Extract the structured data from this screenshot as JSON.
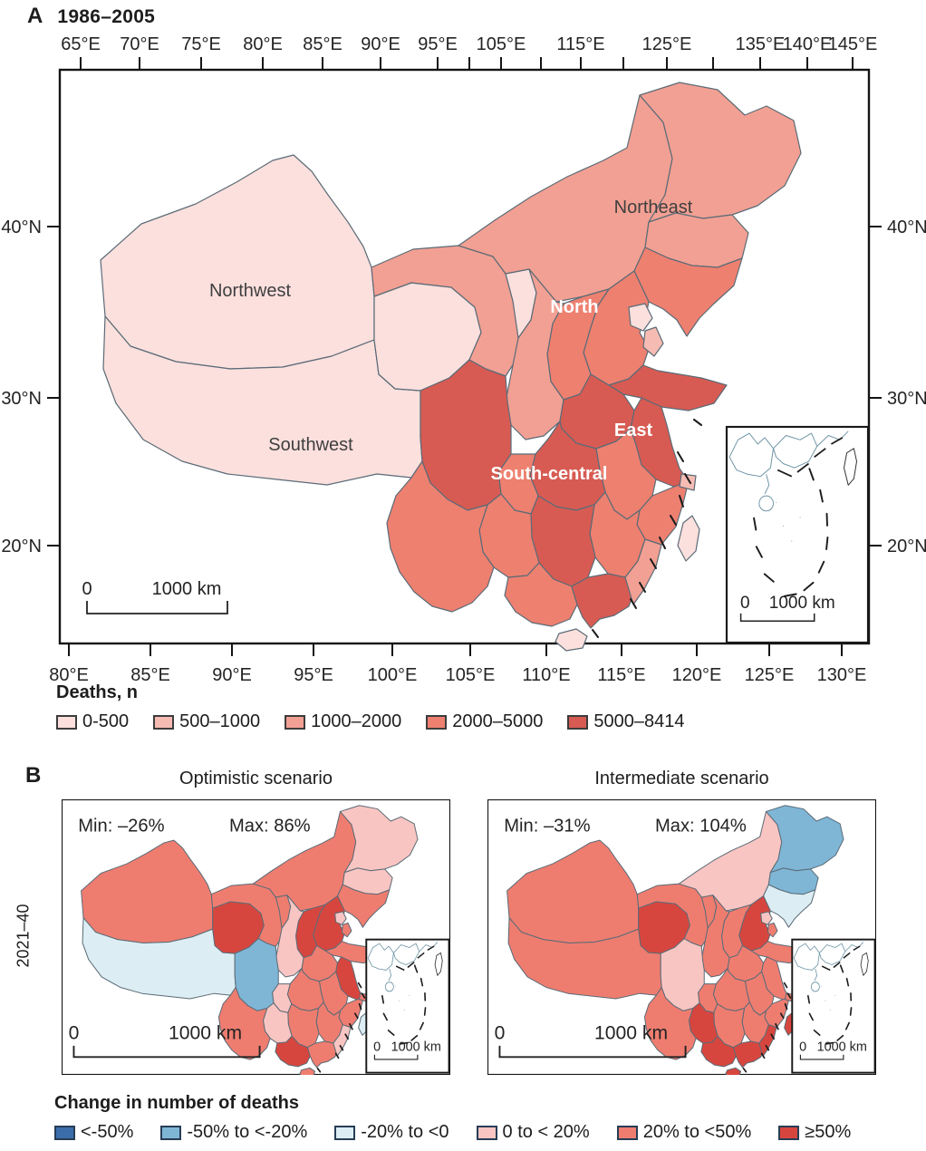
{
  "panel_a": {
    "label": "A",
    "title": "1986–2005",
    "axes": {
      "top_labels": [
        "65°E",
        "70°E",
        "75°E",
        "80°E",
        "85°E",
        "90°E",
        "95°E",
        "",
        "105°E",
        "",
        "115°E",
        "",
        "125°E",
        "",
        "135°E",
        "140°E",
        "145°E"
      ],
      "bottom_labels": [
        "80°E",
        "85°E",
        "90°E",
        "95°E",
        "100°E",
        "105°E",
        "110°E",
        "115°E",
        "120°E",
        "125°E",
        "130°E"
      ],
      "left_labels": [
        "40°N",
        "30°N",
        "20°N"
      ],
      "right_labels": [
        "40°N",
        "30°N",
        "20°N"
      ]
    },
    "region_labels": [
      {
        "name": "Northwest",
        "style": "dark"
      },
      {
        "name": "Southwest",
        "style": "dark"
      },
      {
        "name": "Northeast",
        "style": "dark"
      },
      {
        "name": "North",
        "style": "light"
      },
      {
        "name": "East",
        "style": "light"
      },
      {
        "name": "South-central",
        "style": "light"
      }
    ],
    "scalebar": {
      "zero": "0",
      "km": "1000 km"
    },
    "inset_scalebar": {
      "zero": "0",
      "km": "1000 km"
    },
    "legend": {
      "title": "Deaths, n",
      "items": [
        {
          "label": "0-500",
          "color": "#fbe0dd"
        },
        {
          "label": "500–1000",
          "color": "#f6bcb4"
        },
        {
          "label": "1000–2000",
          "color": "#f2a093"
        },
        {
          "label": "2000–5000",
          "color": "#ee8070"
        },
        {
          "label": "5000–8414",
          "color": "#d75b53"
        }
      ]
    },
    "province_values": {
      "Xinjiang": 0,
      "Tibet": 0,
      "Qinghai": 0,
      "Gansu": 2,
      "Ningxia": 0,
      "InnerMongolia": 2,
      "Heilongjiang": 2,
      "Jilin": 2,
      "Liaoning": 3,
      "Hebei": 3,
      "Shanxi": 3,
      "Shaanxi": 2,
      "Shandong": 4,
      "Henan": 4,
      "Jiangsu": 4,
      "Anhui": 3,
      "Hubei": 4,
      "Zhejiang": 3,
      "Jiangxi": 3,
      "Hunan": 4,
      "Chongqing": 3,
      "Sichuan": 4,
      "Guizhou": 3,
      "Yunnan": 3,
      "Guangxi": 3,
      "Guangdong": 4,
      "Fujian": 2,
      "Hainan": 0,
      "Taiwan": 0,
      "Beijing": 0,
      "Tianjin": 1,
      "Shanghai": 1
    }
  },
  "panel_b": {
    "label": "B",
    "row_label": "2021–40",
    "legend": {
      "title": "Change in number of deaths",
      "items": [
        {
          "label": "<-50%",
          "color": "#3b6dab"
        },
        {
          "label": "-50% to <-20%",
          "color": "#7fb6d6"
        },
        {
          "label": "-20% to <0",
          "color": "#dceef3"
        },
        {
          "label": "0 to < 20%",
          "color": "#f9c5c2"
        },
        {
          "label": "20% to <50%",
          "color": "#ee7d70"
        },
        {
          "label": "≥50%",
          "color": "#d7463e"
        }
      ]
    },
    "maps": [
      {
        "title": "Optimistic scenario",
        "min_label": "Min: –26%",
        "max_label": "Max: 86%",
        "scalebar": {
          "zero": "0",
          "km": "1000 km"
        },
        "inset_scalebar": {
          "zero": "0",
          "km": "1000 km"
        },
        "province_values": {
          "Xinjiang": 4,
          "Tibet": 2,
          "Qinghai": 5,
          "Gansu": 4,
          "Ningxia": 4,
          "InnerMongolia": 4,
          "Heilongjiang": 3,
          "Jilin": 3,
          "Liaoning": 4,
          "Hebei": 5,
          "Shanxi": 5,
          "Shaanxi": 3,
          "Shandong": 4,
          "Henan": 4,
          "Jiangsu": 5,
          "Anhui": 4,
          "Hubei": 4,
          "Zhejiang": 4,
          "Jiangxi": 4,
          "Hunan": 4,
          "Chongqing": 3,
          "Sichuan": 1,
          "Guizhou": 3,
          "Yunnan": 4,
          "Guangxi": 5,
          "Guangdong": 4,
          "Fujian": 3,
          "Hainan": 4,
          "Taiwan": 2,
          "Beijing": 3,
          "Tianjin": 4,
          "Shanghai": 4
        }
      },
      {
        "title": "Intermediate scenario",
        "min_label": "Min: –31%",
        "max_label": "Max: 104%",
        "scalebar": {
          "zero": "0",
          "km": "1000 km"
        },
        "inset_scalebar": {
          "zero": "0",
          "km": "1000 km"
        },
        "province_values": {
          "Xinjiang": 4,
          "Tibet": 4,
          "Qinghai": 5,
          "Gansu": 4,
          "Ningxia": 4,
          "InnerMongolia": 3,
          "Heilongjiang": 1,
          "Jilin": 1,
          "Liaoning": 2,
          "Hebei": 5,
          "Shanxi": 4,
          "Shaanxi": 4,
          "Shandong": 4,
          "Henan": 4,
          "Jiangsu": 4,
          "Anhui": 4,
          "Hubei": 4,
          "Zhejiang": 4,
          "Jiangxi": 4,
          "Hunan": 4,
          "Chongqing": 4,
          "Sichuan": 3,
          "Guizhou": 5,
          "Yunnan": 4,
          "Guangxi": 5,
          "Guangdong": 5,
          "Fujian": 5,
          "Hainan": 5,
          "Taiwan": 5,
          "Beijing": 3,
          "Tianjin": 4,
          "Shanghai": 4
        }
      }
    ]
  }
}
